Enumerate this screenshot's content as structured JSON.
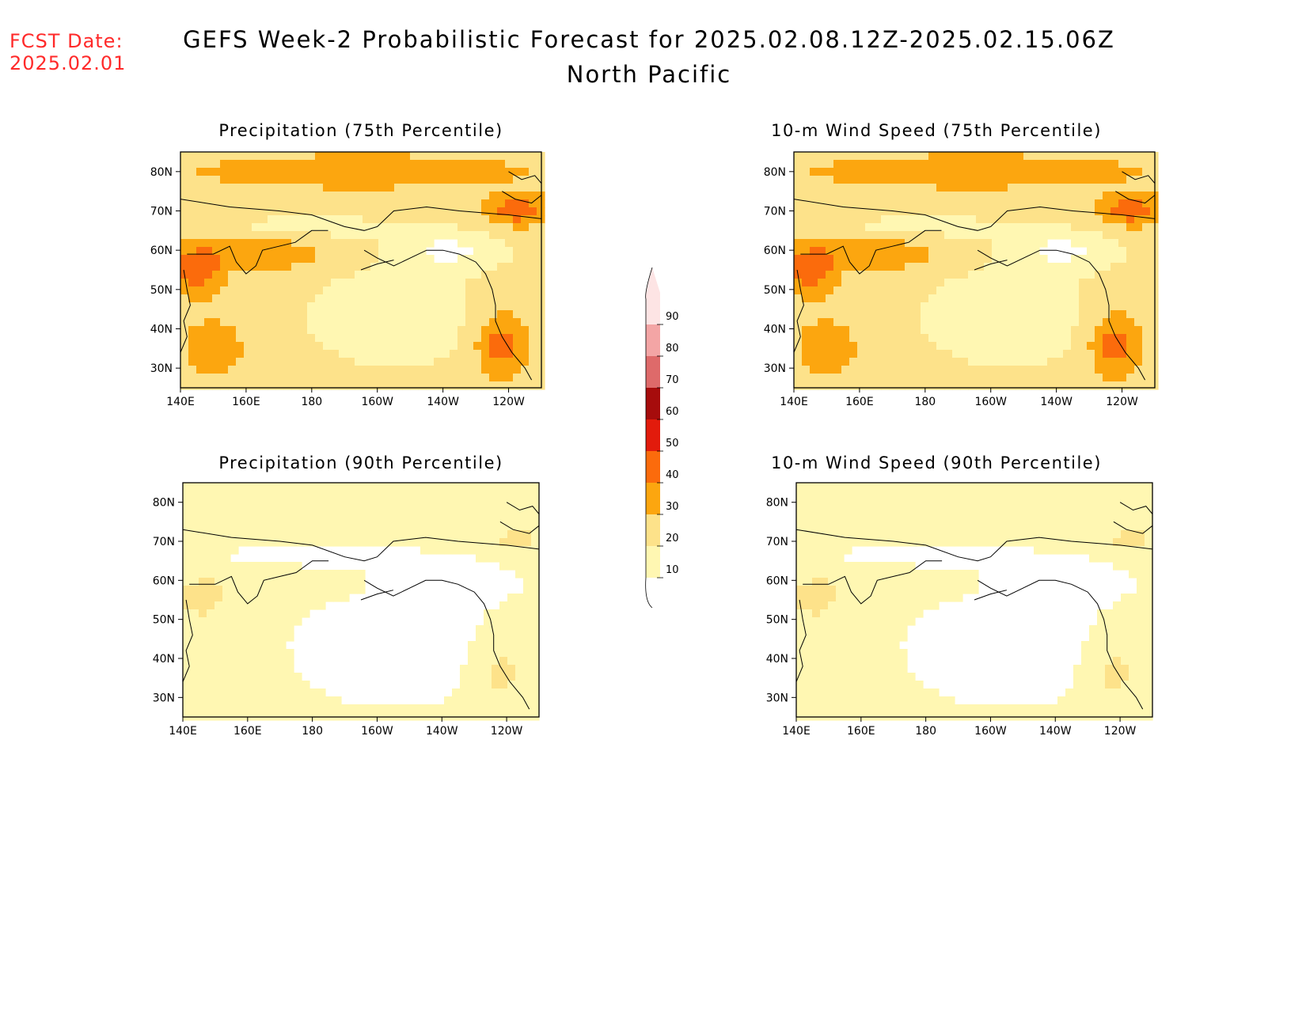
{
  "header": {
    "fcst_date_label": "FCST Date:",
    "fcst_date_value": "2025.02.01",
    "title": "GEFS Week-2 Probabilistic Forecast for 2025.02.08.12Z-2025.02.15.06Z",
    "region": "North Pacific"
  },
  "colors": {
    "levels": [
      {
        "min": 10,
        "max": 20,
        "color": "#fff7b2"
      },
      {
        "min": 20,
        "max": 30,
        "color": "#fde28a"
      },
      {
        "min": 30,
        "max": 40,
        "color": "#fca60f"
      },
      {
        "min": 40,
        "max": 50,
        "color": "#fb6b0c"
      },
      {
        "min": 50,
        "max": 60,
        "color": "#e21b0c"
      },
      {
        "min": 60,
        "max": 70,
        "color": "#a60c0c"
      },
      {
        "min": 70,
        "max": 80,
        "color": "#de6a6a"
      },
      {
        "min": 80,
        "max": 90,
        "color": "#f3a5a5"
      },
      {
        "min": 90,
        "max": 100,
        "color": "#fde4e4"
      }
    ],
    "colorbar_labels": [
      "90",
      "80",
      "70",
      "60",
      "50",
      "40",
      "30",
      "20",
      "10"
    ]
  },
  "axes": {
    "x_ticks": [
      "140E",
      "160E",
      "180",
      "160W",
      "140W",
      "120W"
    ],
    "y_ticks": [
      "80N",
      "70N",
      "60N",
      "50N",
      "40N",
      "30N"
    ]
  },
  "panels": [
    {
      "id": "precip75",
      "title": "Precipitation (75th Percentile)",
      "variable": "precipitation",
      "percentile": 75
    },
    {
      "id": "wind75",
      "title": "10-m Wind Speed (75th Percentile)",
      "variable": "wind",
      "percentile": 75
    },
    {
      "id": "precip90",
      "title": "Precipitation (90th Percentile)",
      "variable": "precipitation",
      "percentile": 90
    },
    {
      "id": "wind90",
      "title": "10-m Wind Speed (90th Percentile)",
      "variable": "wind",
      "percentile": 90
    }
  ]
}
